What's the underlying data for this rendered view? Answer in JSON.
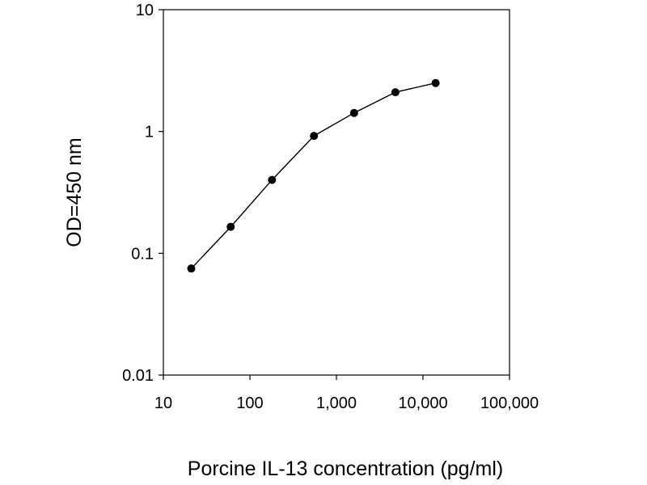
{
  "chart_data": {
    "type": "line",
    "title": "",
    "xlabel": "Porcine IL-13 concentration (pg/ml)",
    "ylabel": "OD=450 nm",
    "xscale": "log",
    "yscale": "log",
    "xlim": [
      10,
      100000
    ],
    "ylim": [
      0.01,
      10
    ],
    "x_ticks": [
      10,
      100,
      1000,
      10000,
      100000
    ],
    "x_tick_labels": [
      "10",
      "100",
      "1,000",
      "10,000",
      "100,000"
    ],
    "y_ticks": [
      0.01,
      0.1,
      1,
      10
    ],
    "y_tick_labels": [
      "0.01",
      "0.1",
      "1",
      "10"
    ],
    "grid": false,
    "legend": "none",
    "series": [
      {
        "x": [
          21,
          60,
          180,
          550,
          1600,
          4800,
          14000
        ],
        "y": [
          0.075,
          0.165,
          0.4,
          0.92,
          1.42,
          2.1,
          2.5
        ]
      }
    ],
    "colors": {
      "line": "#000000",
      "marker": "#000000",
      "axis": "#000000"
    }
  }
}
